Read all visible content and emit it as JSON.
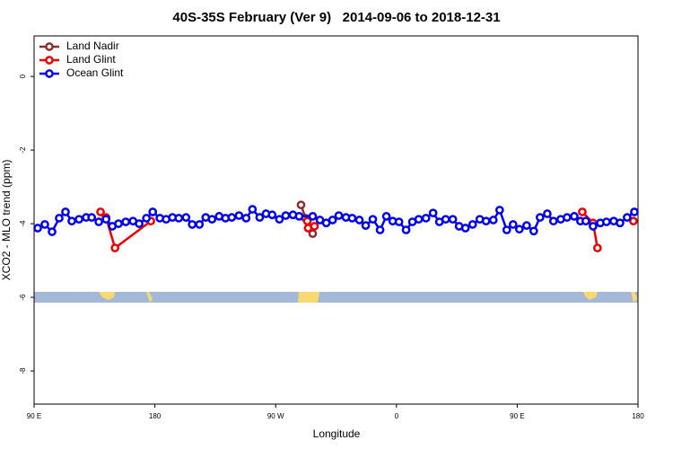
{
  "chart_data": {
    "type": "line",
    "title": "40S-35S February (Ver 9)   2014-09-06 to 2018-12-31",
    "x_label": "Longitude",
    "y_label": "XCO2 - MLO trend (ppm)",
    "xlim": [
      90,
      540
    ],
    "ylim": [
      -8.9,
      1.1
    ],
    "xticks": [
      {
        "value": 90,
        "label": "90 E"
      },
      180,
      {
        "value": 270,
        "label": "90 W"
      },
      {
        "value": 360,
        "label": "0"
      },
      {
        "value": 450,
        "label": "90 E"
      },
      {
        "value": 540,
        "label": "180"
      }
    ],
    "yticks": [
      0,
      -2,
      -4,
      -6,
      -8
    ],
    "legend": "top-left",
    "series": [
      {
        "name": "Land Nadir",
        "color": "#8b2e2e",
        "x": [
          288.9,
          292.2,
          297.6
        ],
        "values": [
          -3.49,
          -3.85,
          -4.27
        ]
      },
      {
        "name": "Land Glint",
        "color": "#ee0000",
        "x": [
          139.5,
          143.6,
          150.3,
          177.0,
          null,
          293.6,
          294.2,
          298.9,
          null,
          498.5,
          506.5,
          509.8,
          null,
          536.6
        ],
        "values": [
          -3.68,
          -3.83,
          -4.66,
          -3.93,
          null,
          -3.93,
          -4.12,
          -4.07,
          null,
          -3.68,
          -3.98,
          -4.66,
          null,
          -3.93
        ]
      },
      {
        "name": "Ocean Glint",
        "color": "#0000ee",
        "x": [
          92.7,
          98.0,
          103.4,
          108.7,
          113.4,
          118.1,
          123.5,
          128.8,
          132.9,
          138.2,
          143.6,
          148.3,
          152.9,
          158.3,
          163.7,
          168.3,
          173.7,
          178.4,
          183.7,
          188.4,
          193.1,
          197.8,
          203.2,
          207.8,
          213.2,
          217.9,
          222.6,
          227.9,
          232.6,
          237.3,
          242.7,
          248.0,
          252.7,
          258.1,
          262.8,
          267.4,
          272.8,
          277.5,
          282.9,
          287.5,
          297.6,
          303.0,
          307.7,
          312.4,
          317.0,
          322.4,
          327.0,
          332.4,
          337.1,
          342.4,
          347.8,
          352.5,
          357.2,
          361.9,
          367.2,
          371.9,
          376.6,
          382.0,
          387.3,
          392.0,
          396.7,
          402.0,
          406.7,
          411.4,
          416.8,
          422.1,
          426.8,
          432.2,
          436.9,
          442.2,
          446.9,
          451.6,
          457.0,
          462.3,
          467.0,
          472.4,
          477.0,
          482.4,
          487.1,
          492.5,
          497.1,
          501.1,
          506.5,
          511.9,
          516.5,
          521.9,
          526.6,
          531.9,
          537.3
        ],
        "values": [
          -4.12,
          -4.02,
          -4.22,
          -3.85,
          -3.68,
          -3.93,
          -3.88,
          -3.83,
          -3.83,
          -3.95,
          -3.88,
          -4.07,
          -4.0,
          -3.95,
          -3.93,
          -4.0,
          -3.85,
          -3.68,
          -3.85,
          -3.88,
          -3.83,
          -3.85,
          -3.83,
          -4.02,
          -4.02,
          -3.83,
          -3.88,
          -3.8,
          -3.85,
          -3.83,
          -3.78,
          -3.85,
          -3.61,
          -3.83,
          -3.73,
          -3.76,
          -3.88,
          -3.78,
          -3.76,
          -3.8,
          -3.8,
          -3.9,
          -3.98,
          -3.9,
          -3.78,
          -3.83,
          -3.85,
          -3.9,
          -4.05,
          -3.88,
          -4.17,
          -3.8,
          -3.93,
          -3.95,
          -4.17,
          -3.95,
          -3.88,
          -3.85,
          -3.71,
          -3.95,
          -3.88,
          -3.88,
          -4.07,
          -4.12,
          -4.02,
          -3.88,
          -3.93,
          -3.9,
          -3.63,
          -4.17,
          -4.02,
          -4.15,
          -4.05,
          -4.2,
          -3.83,
          -3.73,
          -3.93,
          -3.88,
          -3.83,
          -3.8,
          -3.93,
          -3.93,
          -4.07,
          -3.98,
          -3.95,
          -3.93,
          -3.98,
          -3.83,
          -3.68
        ]
      }
    ]
  }
}
